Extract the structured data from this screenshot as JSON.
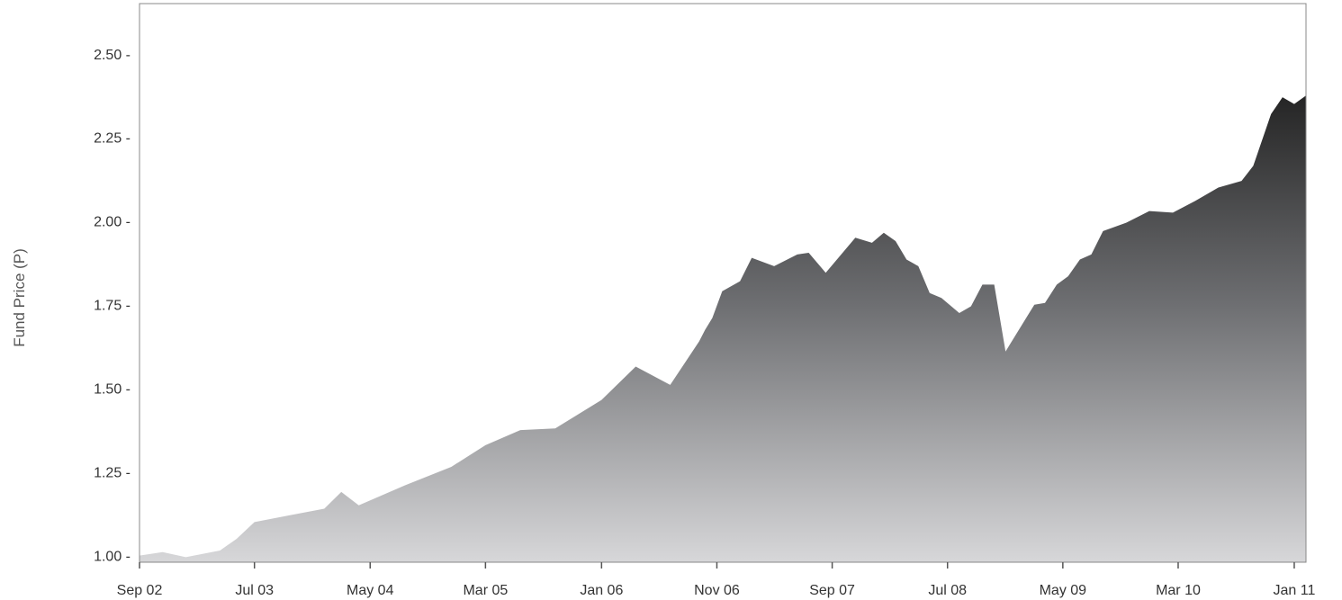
{
  "chart_data": {
    "type": "area",
    "title": "",
    "xlabel": "",
    "ylabel": "Fund Price (P)",
    "ylim": [
      0.98,
      2.65
    ],
    "xlim": [
      "2002-09-01",
      "2011-02-01"
    ],
    "yticks": [
      {
        "value": 1.0,
        "label": "1.00 -"
      },
      {
        "value": 1.25,
        "label": "1.25 -"
      },
      {
        "value": 1.5,
        "label": "1.50 -"
      },
      {
        "value": 1.75,
        "label": "1.75 -"
      },
      {
        "value": 2.0,
        "label": "2.00 -"
      },
      {
        "value": 2.25,
        "label": "2.25 -"
      },
      {
        "value": 2.5,
        "label": "2.50 -"
      }
    ],
    "xticks": [
      {
        "date": "2002-09-01",
        "label": "Sep 02"
      },
      {
        "date": "2003-07-01",
        "label": "Jul 03"
      },
      {
        "date": "2004-05-01",
        "label": "May 04"
      },
      {
        "date": "2005-03-01",
        "label": "Mar 05"
      },
      {
        "date": "2006-01-01",
        "label": "Jan 06"
      },
      {
        "date": "2006-11-01",
        "label": "Nov 06"
      },
      {
        "date": "2007-09-01",
        "label": "Sep 07"
      },
      {
        "date": "2008-07-01",
        "label": "Jul 08"
      },
      {
        "date": "2009-05-01",
        "label": "May 09"
      },
      {
        "date": "2010-03-01",
        "label": "Mar 10"
      },
      {
        "date": "2011-01-01",
        "label": "Jan 11"
      }
    ],
    "grid": false,
    "fill": "vertical gradient from light grey (low) to near-black (high)",
    "colors": {
      "fill_top": "#252525",
      "fill_mid": "#6e6f72",
      "fill_bottom": "#d7d7d9",
      "frame": "#888888"
    },
    "series": [
      {
        "points": [
          [
            "2002-09-01",
            1.0
          ],
          [
            "2002-11-01",
            1.01
          ],
          [
            "2003-01-01",
            0.995
          ],
          [
            "2003-04-01",
            1.015
          ],
          [
            "2003-05-15",
            1.05
          ],
          [
            "2003-07-01",
            1.1
          ],
          [
            "2003-10-01",
            1.12
          ],
          [
            "2004-01-01",
            1.14
          ],
          [
            "2004-02-15",
            1.19
          ],
          [
            "2004-04-01",
            1.15
          ],
          [
            "2004-08-01",
            1.21
          ],
          [
            "2004-12-01",
            1.265
          ],
          [
            "2005-03-01",
            1.33
          ],
          [
            "2005-06-01",
            1.375
          ],
          [
            "2005-09-01",
            1.38
          ],
          [
            "2006-01-01",
            1.465
          ],
          [
            "2006-04-01",
            1.565
          ],
          [
            "2006-07-01",
            1.51
          ],
          [
            "2006-09-15",
            1.64
          ],
          [
            "2006-10-01",
            1.675
          ],
          [
            "2006-10-20",
            1.71
          ],
          [
            "2006-11-15",
            1.79
          ],
          [
            "2007-01-01",
            1.82
          ],
          [
            "2007-02-01",
            1.89
          ],
          [
            "2007-04-01",
            1.865
          ],
          [
            "2007-06-01",
            1.9
          ],
          [
            "2007-07-01",
            1.905
          ],
          [
            "2007-08-15",
            1.845
          ],
          [
            "2007-11-01",
            1.95
          ],
          [
            "2007-12-15",
            1.935
          ],
          [
            "2008-01-15",
            1.965
          ],
          [
            "2008-02-15",
            1.94
          ],
          [
            "2008-03-15",
            1.885
          ],
          [
            "2008-04-15",
            1.865
          ],
          [
            "2008-05-15",
            1.785
          ],
          [
            "2008-06-15",
            1.77
          ],
          [
            "2008-08-01",
            1.725
          ],
          [
            "2008-09-01",
            1.745
          ],
          [
            "2008-10-01",
            1.81
          ],
          [
            "2008-11-01",
            1.81
          ],
          [
            "2008-12-01",
            1.61
          ],
          [
            "2009-02-15",
            1.75
          ],
          [
            "2009-03-15",
            1.755
          ],
          [
            "2009-04-15",
            1.81
          ],
          [
            "2009-05-15",
            1.835
          ],
          [
            "2009-06-15",
            1.885
          ],
          [
            "2009-07-15",
            1.9
          ],
          [
            "2009-08-15",
            1.97
          ],
          [
            "2009-10-15",
            1.995
          ],
          [
            "2009-12-15",
            2.03
          ],
          [
            "2010-02-15",
            2.025
          ],
          [
            "2010-04-15",
            2.06
          ],
          [
            "2010-06-15",
            2.1
          ],
          [
            "2010-08-15",
            2.12
          ],
          [
            "2010-09-15",
            2.165
          ],
          [
            "2010-11-01",
            2.32
          ],
          [
            "2010-12-01",
            2.37
          ],
          [
            "2011-01-01",
            2.35
          ],
          [
            "2011-02-01",
            2.375
          ]
        ]
      }
    ]
  }
}
